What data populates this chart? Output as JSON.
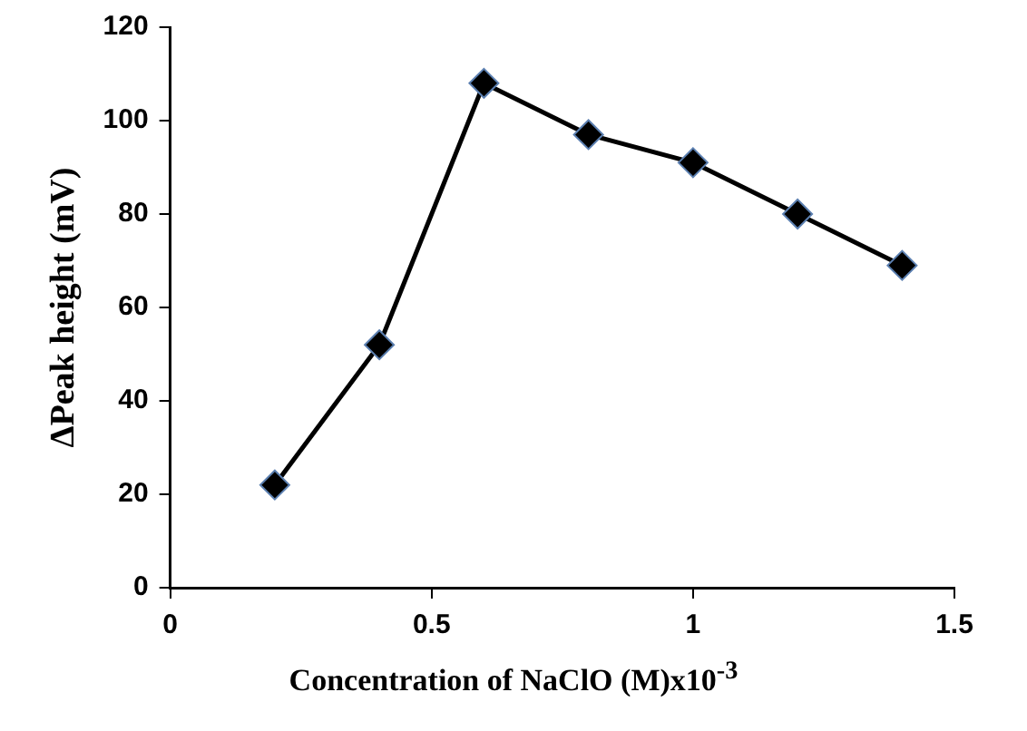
{
  "chart_data": {
    "type": "line",
    "xlabel": "Concentration of NaClO (M)x10$^{-3}$",
    "ylabel": "ΔPeak height (mV)",
    "x": [
      0.2,
      0.4,
      0.6,
      0.8,
      1.0,
      1.2,
      1.4
    ],
    "series": [
      {
        "color": "#000000",
        "values": [
          22,
          52,
          108,
          97,
          91,
          80,
          69
        ]
      }
    ],
    "xlim": [
      0,
      1.5
    ],
    "xticks": [
      0,
      0.5,
      1,
      1.5
    ],
    "ylim": [
      0,
      120
    ],
    "yticks": [
      0,
      20,
      40,
      60,
      80,
      100,
      120
    ],
    "grid": false,
    "legend": false,
    "marker": "diamond",
    "line_style": "solid"
  }
}
